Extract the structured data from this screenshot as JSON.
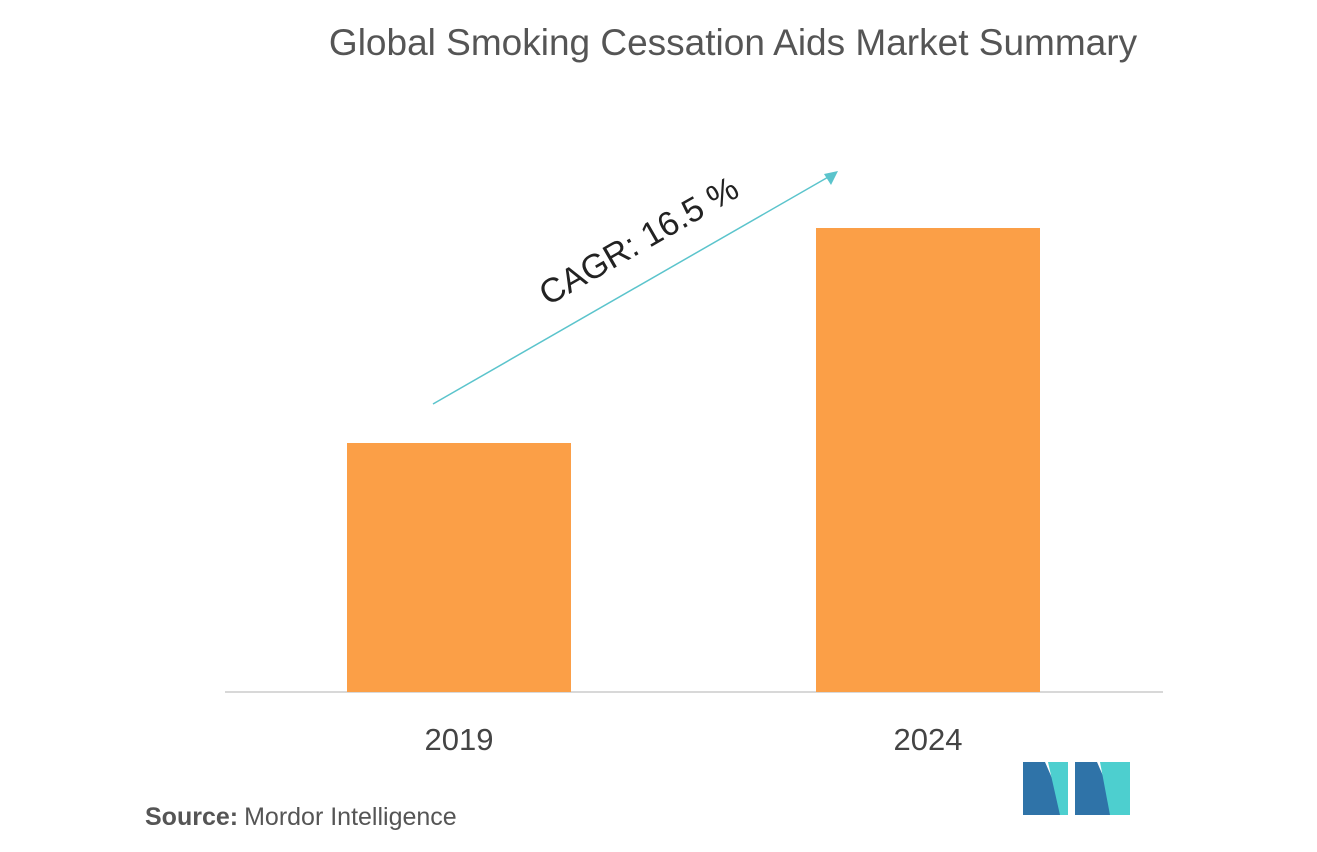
{
  "chart_data": {
    "type": "bar",
    "title": "Global Smoking Cessation Aids Market Summary",
    "categories": [
      "2019",
      "2024"
    ],
    "values": [
      249,
      464
    ],
    "color": "#fb9f47",
    "annotation": "CAGR: 16.5 %",
    "source_label": "Source:",
    "source": "Mordor Intelligence"
  }
}
